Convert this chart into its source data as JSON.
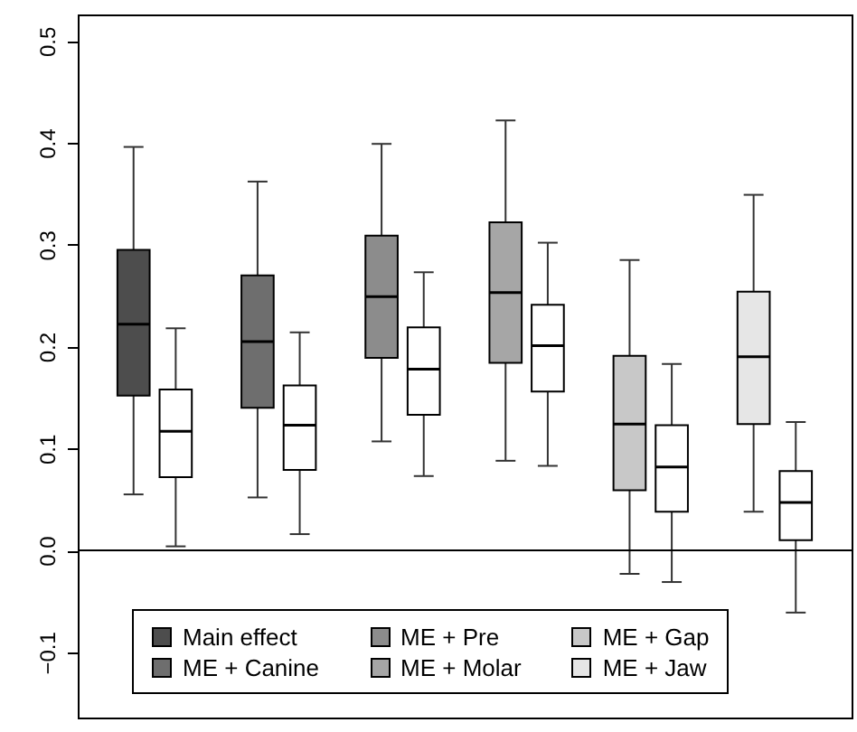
{
  "chart_data": {
    "type": "box",
    "categories": [
      null,
      null,
      null,
      null,
      null,
      null
    ],
    "tick_labels": "y",
    "annotations": [
      "Main effect",
      "ME + Canine",
      "ME + Pre",
      "ME + Molar",
      "ME + Gap",
      "ME + Jaw"
    ],
    "ylim": [
      -0.164,
      0.526
    ],
    "yticks": [
      {
        "value": -0.1,
        "label": "−0.1"
      },
      {
        "value": 0,
        "label": "0.0"
      },
      {
        "value": 0.1,
        "label": "0.1"
      },
      {
        "value": 0.2,
        "label": "0.2"
      },
      {
        "value": 0.3,
        "label": "0.3"
      },
      {
        "value": 0.4,
        "label": "0.4"
      },
      {
        "value": 0.5,
        "label": "0.5"
      }
    ],
    "grid": false,
    "ref_lines": [
      {
        "axis": "y",
        "value": 0
      }
    ],
    "series": [
      {
        "colors": [
          "#4d4d4d",
          "#6e6e6e",
          "#8c8c8c",
          "#a6a6a6",
          "#c8c8c8",
          "#e6e6e6"
        ],
        "boxes": [
          {
            "low": 0.055,
            "q1": 0.152,
            "median": 0.222,
            "q3": 0.295,
            "high": 0.396
          },
          {
            "low": 0.052,
            "q1": 0.14,
            "median": 0.205,
            "q3": 0.27,
            "high": 0.362
          },
          {
            "low": 0.107,
            "q1": 0.189,
            "median": 0.249,
            "q3": 0.309,
            "high": 0.399
          },
          {
            "low": 0.088,
            "q1": 0.184,
            "median": 0.253,
            "q3": 0.322,
            "high": 0.422
          },
          {
            "low": -0.023,
            "q1": 0.059,
            "median": 0.124,
            "q3": 0.191,
            "high": 0.285
          },
          {
            "low": 0.038,
            "q1": 0.124,
            "median": 0.19,
            "q3": 0.254,
            "high": 0.349
          }
        ]
      },
      {
        "color": "#ffffff",
        "boxes": [
          {
            "low": 0.004,
            "q1": 0.072,
            "median": 0.117,
            "q3": 0.158,
            "high": 0.218
          },
          {
            "low": 0.016,
            "q1": 0.079,
            "median": 0.123,
            "q3": 0.162,
            "high": 0.214
          },
          {
            "low": 0.073,
            "q1": 0.133,
            "median": 0.178,
            "q3": 0.219,
            "high": 0.273
          },
          {
            "low": 0.083,
            "q1": 0.156,
            "median": 0.201,
            "q3": 0.241,
            "high": 0.302
          },
          {
            "low": -0.031,
            "q1": 0.038,
            "median": 0.082,
            "q3": 0.123,
            "high": 0.183
          },
          {
            "low": -0.061,
            "q1": 0.01,
            "median": 0.047,
            "q3": 0.078,
            "high": 0.126
          }
        ]
      }
    ]
  }
}
